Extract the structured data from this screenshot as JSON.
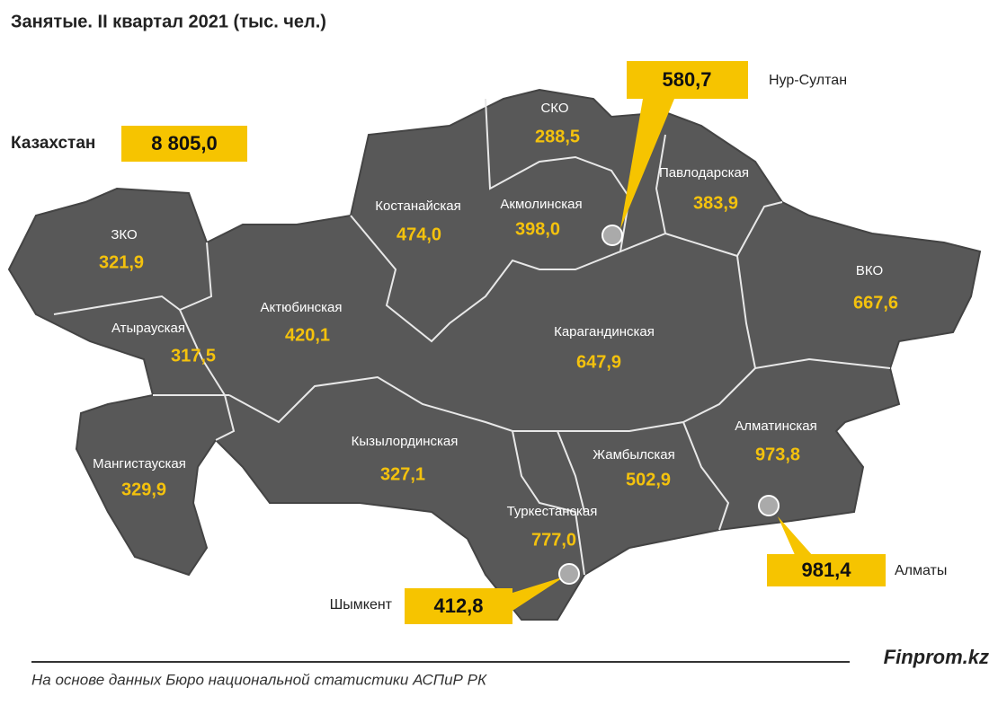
{
  "title": "Занятые. II квартал 2021 (тыс. чел.)",
  "total": {
    "name": "Казахстан",
    "value": "8 805,0"
  },
  "regions": [
    {
      "name": "ЗКО",
      "value": "321,9"
    },
    {
      "name": "Атырауская",
      "value": "317,5"
    },
    {
      "name": "Мангистауская",
      "value": "329,9"
    },
    {
      "name": "Актюбинская",
      "value": "420,1"
    },
    {
      "name": "Костанайская",
      "value": "474,0"
    },
    {
      "name": "СКО",
      "value": "288,5"
    },
    {
      "name": "Акмолинская",
      "value": "398,0"
    },
    {
      "name": "Павлодарская",
      "value": "383,9"
    },
    {
      "name": "ВКО",
      "value": "667,6"
    },
    {
      "name": "Карагандинская",
      "value": "647,9"
    },
    {
      "name": "Кызылординская",
      "value": "327,1"
    },
    {
      "name": "Жамбылская",
      "value": "502,9"
    },
    {
      "name": "Алматинская",
      "value": "973,8"
    },
    {
      "name": "Туркестанская",
      "value": "777,0"
    }
  ],
  "cities": [
    {
      "name": "Нур-Султан",
      "value": "580,7"
    },
    {
      "name": "Алматы",
      "value": "981,4"
    },
    {
      "name": "Шымкент",
      "value": "412,8"
    }
  ],
  "brand": "Finprom.kz",
  "source": "На основе данных Бюро национальной статистики АСПиР РК"
}
